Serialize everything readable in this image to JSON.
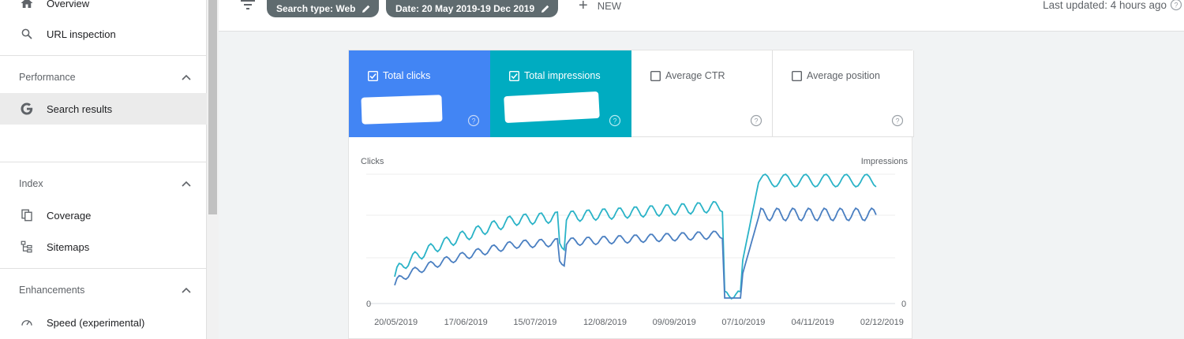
{
  "sidebar": {
    "top_items": [
      {
        "label": "Overview",
        "icon": "home-icon"
      },
      {
        "label": "URL inspection",
        "icon": "search-icon"
      }
    ],
    "sections": [
      {
        "title": "Performance",
        "items": [
          {
            "label": "Search results",
            "icon": "google-g-icon",
            "active": true
          }
        ]
      },
      {
        "title": "Index",
        "items": [
          {
            "label": "Coverage",
            "icon": "coverage-icon"
          },
          {
            "label": "Sitemaps",
            "icon": "sitemap-icon"
          }
        ]
      },
      {
        "title": "Enhancements",
        "items": [
          {
            "label": "Speed (experimental)",
            "icon": "speedometer-icon"
          }
        ]
      }
    ]
  },
  "toolbar": {
    "search_type_chip": "Search type: Web",
    "date_chip": "Date: 20 May 2019-19 Dec 2019",
    "new_label": "NEW",
    "last_updated": "Last updated: 4 hours ago"
  },
  "metrics": [
    {
      "label": "Total clicks",
      "checked": true,
      "color": "#4285f4"
    },
    {
      "label": "Total impressions",
      "checked": true,
      "color": "#00acc1"
    },
    {
      "label": "Average CTR",
      "checked": false
    },
    {
      "label": "Average position",
      "checked": false
    }
  ],
  "chart_data": {
    "type": "line",
    "left_axis_label": "Clicks",
    "right_axis_label": "Impressions",
    "left_zero": "0",
    "right_zero": "0",
    "x_ticks": [
      "20/05/2019",
      "17/06/2019",
      "15/07/2019",
      "12/08/2019",
      "09/09/2019",
      "07/10/2019",
      "04/11/2019",
      "02/12/2019"
    ],
    "series_colors": {
      "clicks": "#4a7fc1",
      "impressions": "#2ab3c7"
    }
  }
}
